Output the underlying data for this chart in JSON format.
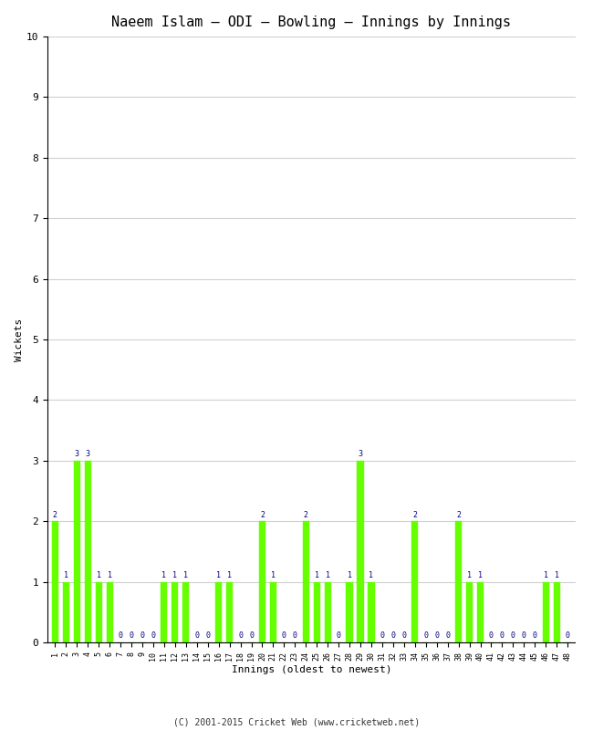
{
  "title": "Naeem Islam – ODI – Bowling – Innings by Innings",
  "xlabel": "Innings (oldest to newest)",
  "ylabel": "Wickets",
  "ylim": [
    0,
    10
  ],
  "yticks": [
    0,
    1,
    2,
    3,
    4,
    5,
    6,
    7,
    8,
    9,
    10
  ],
  "innings": [
    1,
    2,
    3,
    4,
    5,
    6,
    7,
    8,
    9,
    10,
    11,
    12,
    13,
    14,
    15,
    16,
    17,
    18,
    19,
    20,
    21,
    22,
    23,
    24,
    25,
    26,
    27,
    28,
    29,
    30,
    31,
    32,
    33,
    34,
    35,
    36,
    37,
    38,
    39,
    40,
    41,
    42,
    43,
    44,
    45,
    46,
    47,
    48
  ],
  "wickets": [
    2,
    1,
    3,
    3,
    1,
    1,
    0,
    0,
    0,
    0,
    1,
    1,
    1,
    0,
    0,
    1,
    1,
    0,
    0,
    2,
    1,
    0,
    0,
    2,
    1,
    1,
    0,
    1,
    3,
    1,
    0,
    0,
    0,
    2,
    0,
    0,
    0,
    2,
    1,
    1,
    0,
    0,
    0,
    0,
    0,
    1,
    1,
    0
  ],
  "bar_color": "#66ff00",
  "bar_edge_color": "#66ff00",
  "label_color": "#000080",
  "background_color": "#ffffff",
  "grid_color": "#d0d0d0",
  "title_fontsize": 11,
  "axis_fontsize": 8,
  "tick_fontsize": 6,
  "label_fontsize": 6,
  "footer": "(C) 2001-2015 Cricket Web (www.cricketweb.net)"
}
